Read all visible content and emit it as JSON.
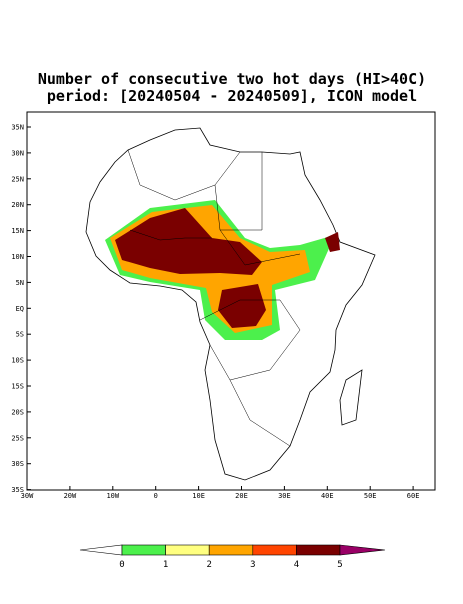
{
  "title": [
    "Number of consecutive two hot days (HI>40C)",
    "period: [20240504 - 20240509], ICON model"
  ],
  "lat_labels": [
    "35N",
    "30N",
    "25N",
    "20N",
    "15N",
    "10N",
    "5N",
    "EQ",
    "5S",
    "10S",
    "15S",
    "20S",
    "25S",
    "30S",
    "35S"
  ],
  "lon_labels": [
    "30W",
    "20W",
    "10W",
    "0",
    "10E",
    "20E",
    "30E",
    "40E",
    "50E",
    "60E"
  ],
  "colorbar": {
    "labels": [
      "0",
      "1",
      "2",
      "3",
      "4",
      "5"
    ],
    "colors": [
      "#ffffff",
      "#4cf04c",
      "#ffff80",
      "#ffa500",
      "#ff4500",
      "#7a0000",
      "#990066"
    ]
  }
}
